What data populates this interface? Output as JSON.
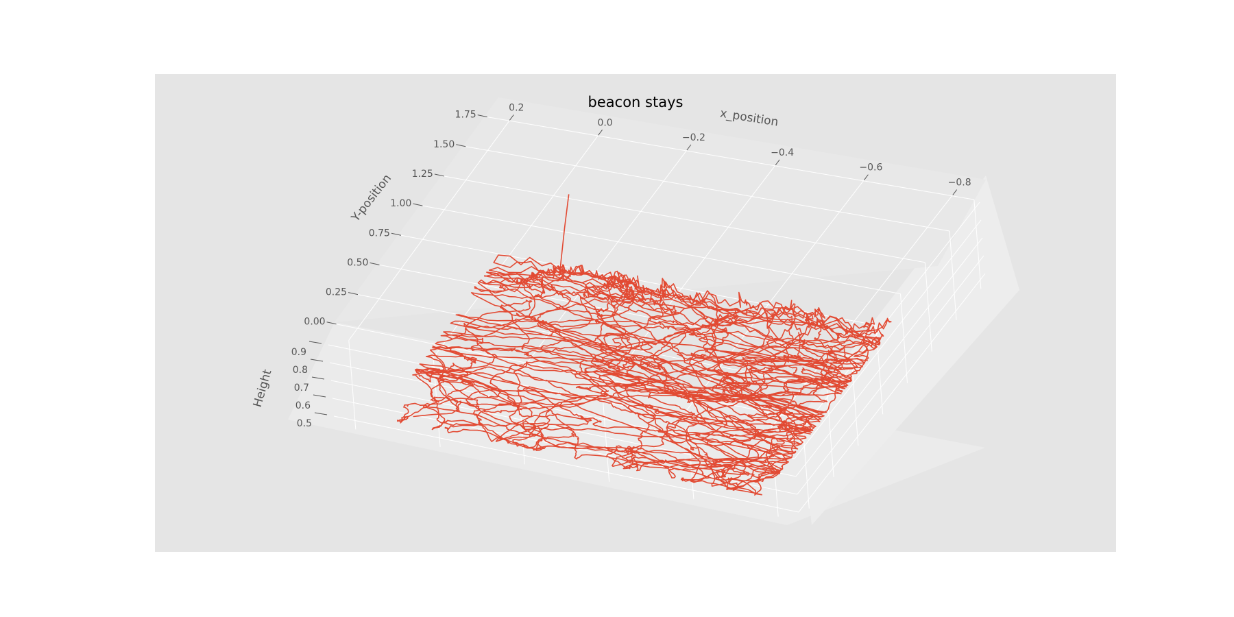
{
  "chart_data": {
    "type": "line3d",
    "title": "beacon stays",
    "xlabel": "x_position",
    "ylabel": "Y-position",
    "zlabel": "Height",
    "x_ticks": [
      "0.2",
      "0.0",
      "−0.2",
      "−0.4",
      "−0.6",
      "−0.8"
    ],
    "y_ticks": [
      "0.00",
      "0.25",
      "0.50",
      "0.75",
      "1.00",
      "1.25",
      "1.50",
      "1.75"
    ],
    "z_ticks": [
      "0.5",
      "0.6",
      "0.7",
      "0.8",
      "0.9"
    ],
    "xlim": [
      0.25,
      -0.85
    ],
    "ylim": [
      -0.1,
      1.8
    ],
    "zlim": [
      0.45,
      0.95
    ],
    "grid": true,
    "style": "ggplot",
    "series": [
      {
        "color": "#E24A33",
        "points": "dense beacon trajectory, x ≈ -0.75..0.15, y ≈ -0.05..1.3, z ≈ 0.5..0.55"
      }
    ]
  },
  "colors": {
    "axes_bg": "#E5E5E5",
    "pane": "#EBEBEB",
    "grid": "#FFFFFF",
    "series": "#E24A33",
    "tick": "#555555"
  }
}
